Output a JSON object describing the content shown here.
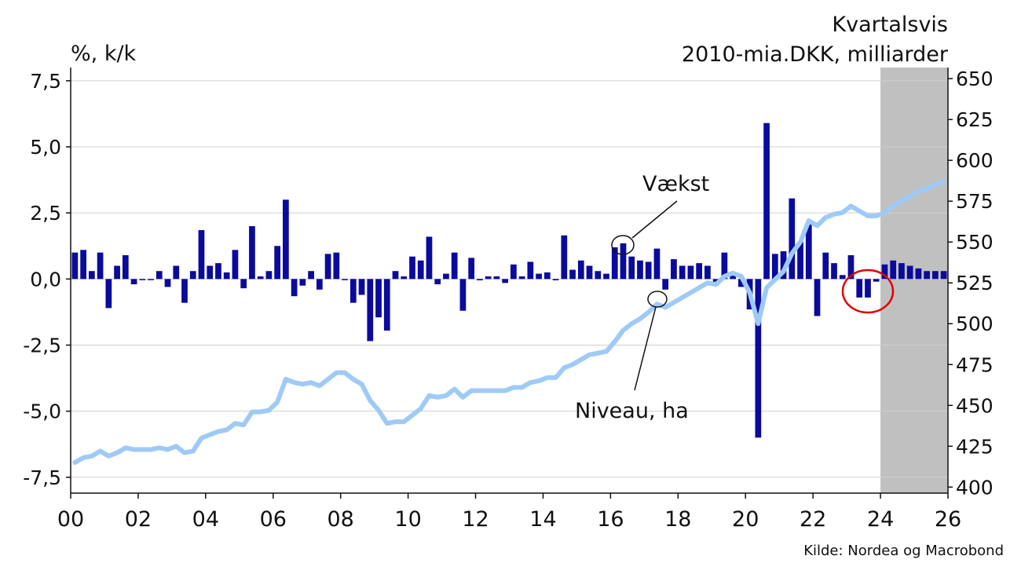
{
  "chart_data": {
    "type": "bar+line",
    "left_axis_unit": "%, k/k",
    "right_axis_title": [
      "Kvartalsvis",
      "2010-mia.DKK, milliarder"
    ],
    "source": "Kilde: Nordea og Macrobond",
    "x_ticks": [
      "00",
      "02",
      "04",
      "06",
      "08",
      "10",
      "12",
      "14",
      "16",
      "18",
      "20",
      "22",
      "24",
      "26"
    ],
    "x_range": [
      2000,
      2026
    ],
    "left_ylim": [
      -8.1,
      8.0
    ],
    "right_ylim": [
      396.3,
      656.8
    ],
    "left_ticks": [
      7.5,
      5.0,
      2.5,
      0.0,
      -2.5,
      -5.0,
      -7.5
    ],
    "left_tick_labels": [
      "7,5",
      "5,0",
      "2,5",
      "0,0",
      "-2,5",
      "-5,0",
      "-7,5"
    ],
    "right_ticks": [
      650,
      625,
      600,
      575,
      550,
      525,
      500,
      475,
      450,
      425,
      400
    ],
    "right_tick_labels": [
      "650",
      "625",
      "600",
      "575",
      "550",
      "525",
      "500",
      "475",
      "450",
      "425",
      "400"
    ],
    "forecast_start": 2024,
    "grid": "horizontal",
    "colors": {
      "bars": "#0a0a9c",
      "line": "#9fcaf7",
      "forecast_shade": "#c0c0c0",
      "highlight_circle": "#e00000"
    },
    "series": [
      {
        "name": "Vækst",
        "axis": "left",
        "kind": "bar",
        "x": [
          2000.125,
          2000.375,
          2000.625,
          2000.875,
          2001.125,
          2001.375,
          2001.625,
          2001.875,
          2002.125,
          2002.375,
          2002.625,
          2002.875,
          2003.125,
          2003.375,
          2003.625,
          2003.875,
          2004.125,
          2004.375,
          2004.625,
          2004.875,
          2005.125,
          2005.375,
          2005.625,
          2005.875,
          2006.125,
          2006.375,
          2006.625,
          2006.875,
          2007.125,
          2007.375,
          2007.625,
          2007.875,
          2008.125,
          2008.375,
          2008.625,
          2008.875,
          2009.125,
          2009.375,
          2009.625,
          2009.875,
          2010.125,
          2010.375,
          2010.625,
          2010.875,
          2011.125,
          2011.375,
          2011.625,
          2011.875,
          2012.125,
          2012.375,
          2012.625,
          2012.875,
          2013.125,
          2013.375,
          2013.625,
          2013.875,
          2014.125,
          2014.375,
          2014.625,
          2014.875,
          2015.125,
          2015.375,
          2015.625,
          2015.875,
          2016.125,
          2016.375,
          2016.625,
          2016.875,
          2017.125,
          2017.375,
          2017.625,
          2017.875,
          2018.125,
          2018.375,
          2018.625,
          2018.875,
          2019.125,
          2019.375,
          2019.625,
          2019.875,
          2020.125,
          2020.375,
          2020.625,
          2020.875,
          2021.125,
          2021.375,
          2021.625,
          2021.875,
          2022.125,
          2022.375,
          2022.625,
          2022.875,
          2023.125,
          2023.375,
          2023.625,
          2023.875,
          2024.125,
          2024.375,
          2024.625,
          2024.875,
          2025.125,
          2025.375,
          2025.625,
          2025.875
        ],
        "values": [
          1.0,
          1.1,
          0.3,
          1.0,
          -1.1,
          0.5,
          0.9,
          -0.2,
          0.0,
          0.0,
          0.3,
          -0.3,
          0.5,
          -0.9,
          0.3,
          1.85,
          0.5,
          0.6,
          0.25,
          1.1,
          -0.35,
          2.0,
          0.1,
          0.3,
          1.25,
          3.0,
          -0.65,
          -0.25,
          0.3,
          -0.4,
          0.95,
          1.0,
          0.0,
          -0.9,
          -0.6,
          -2.35,
          -1.45,
          -1.95,
          0.3,
          0.1,
          0.85,
          0.7,
          1.6,
          -0.2,
          0.2,
          1.0,
          -1.2,
          0.8,
          -0.05,
          0.1,
          0.1,
          -0.15,
          0.55,
          0.1,
          0.65,
          0.2,
          0.25,
          -0.05,
          1.65,
          0.35,
          0.7,
          0.5,
          0.3,
          0.2,
          1.2,
          1.35,
          0.85,
          0.7,
          0.65,
          1.15,
          -0.4,
          0.75,
          0.5,
          0.5,
          0.6,
          0.5,
          -0.2,
          1.0,
          0.2,
          -0.3,
          -1.15,
          -6.0,
          5.9,
          0.95,
          1.05,
          3.05,
          1.4,
          2.15,
          -1.4,
          1.0,
          0.6,
          0.15,
          0.9,
          -0.7,
          -0.7,
          -0.1,
          0.55,
          0.7,
          0.6,
          0.5,
          0.4,
          0.3,
          0.3,
          0.3
        ]
      },
      {
        "name": "Niveau, ha",
        "axis": "right",
        "kind": "line",
        "x": [
          2000.125,
          2000.375,
          2000.625,
          2000.875,
          2001.125,
          2001.375,
          2001.625,
          2001.875,
          2002.125,
          2002.375,
          2002.625,
          2002.875,
          2003.125,
          2003.375,
          2003.625,
          2003.875,
          2004.125,
          2004.375,
          2004.625,
          2004.875,
          2005.125,
          2005.375,
          2005.625,
          2005.875,
          2006.125,
          2006.375,
          2006.625,
          2006.875,
          2007.125,
          2007.375,
          2007.625,
          2007.875,
          2008.125,
          2008.375,
          2008.625,
          2008.875,
          2009.125,
          2009.375,
          2009.625,
          2009.875,
          2010.125,
          2010.375,
          2010.625,
          2010.875,
          2011.125,
          2011.375,
          2011.625,
          2011.875,
          2012.125,
          2012.375,
          2012.625,
          2012.875,
          2013.125,
          2013.375,
          2013.625,
          2013.875,
          2014.125,
          2014.375,
          2014.625,
          2014.875,
          2015.125,
          2015.375,
          2015.625,
          2015.875,
          2016.125,
          2016.375,
          2016.625,
          2016.875,
          2017.125,
          2017.375,
          2017.625,
          2017.875,
          2018.125,
          2018.375,
          2018.625,
          2018.875,
          2019.125,
          2019.375,
          2019.625,
          2019.875,
          2020.125,
          2020.375,
          2020.625,
          2020.875,
          2021.125,
          2021.375,
          2021.625,
          2021.875,
          2022.125,
          2022.375,
          2022.625,
          2022.875,
          2023.125,
          2023.375,
          2023.625,
          2023.875,
          2024.125,
          2024.375,
          2024.625,
          2024.875,
          2025.125,
          2025.375,
          2025.625,
          2025.875
        ],
        "values": [
          415,
          418,
          419,
          422,
          419,
          421,
          424,
          423,
          423,
          423,
          424,
          423,
          425,
          421,
          422,
          430,
          432,
          434,
          435,
          439,
          438,
          446,
          446,
          447,
          452,
          466,
          464,
          463,
          464,
          462,
          466,
          470,
          470,
          466,
          463,
          453,
          447,
          439,
          440,
          440,
          444,
          448,
          456,
          455,
          456,
          460,
          455,
          459,
          459,
          459,
          459,
          459,
          461,
          461,
          464,
          465,
          467,
          467,
          473,
          475,
          478,
          481,
          482,
          483,
          489,
          496,
          500,
          503,
          507,
          512,
          510,
          513,
          516,
          519,
          522,
          525,
          524,
          529,
          531,
          529,
          519,
          500,
          522,
          527,
          532,
          543,
          550,
          563,
          560,
          565,
          567,
          568,
          572,
          569,
          566,
          566,
          568,
          572,
          575,
          578,
          581,
          583,
          585,
          587
        ]
      }
    ]
  }
}
